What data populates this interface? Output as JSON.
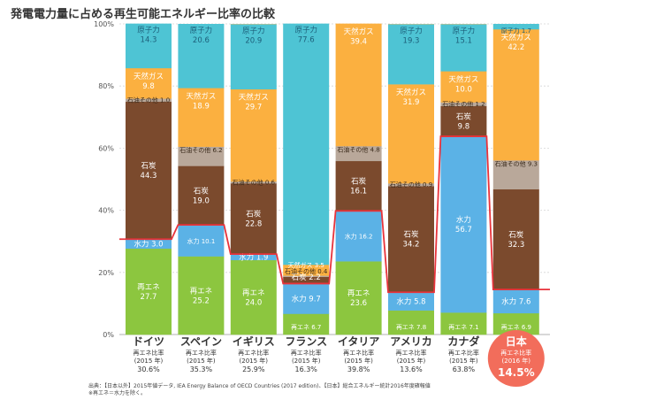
{
  "title": "発電電力量に占める再生可能エネルギー比率の比較",
  "source_lines": [
    "出典：【日本以外】2015年値データ, IEA Energy Balance of OECD Countries (2017 edition)、【日本】総合エネルギー統計2016年度確報値",
    "※再エネ＝水力を除く。"
  ],
  "colors": {
    "renew": "#8cc63f",
    "hydro": "#5bb2e6",
    "coal": "#7b4a2d",
    "oil": "#b9a89a",
    "gas": "#fbb040",
    "nuclear": "#4ec4d4",
    "japan_circle": "#f26d5b",
    "red_line": "#e8333b"
  },
  "chart_data": {
    "type": "bar",
    "stacked": true,
    "normalized": true,
    "ylim": [
      0,
      100
    ],
    "yticks": [
      "0%",
      "20%",
      "40%",
      "60%",
      "80%",
      "100%"
    ],
    "grid": true,
    "categories": [
      "ドイツ",
      "スペイン",
      "イギリス",
      "フランス",
      "イタリア",
      "アメリカ",
      "カナダ",
      "日本"
    ],
    "renewable_ratio_label": "再エネ比率",
    "years": [
      "(2015 年)",
      "(2015 年)",
      "(2015 年)",
      "(2015 年)",
      "(2015 年)",
      "(2015 年)",
      "(2015 年)",
      "(2016 年)"
    ],
    "renewable_ratio": [
      "30.6%",
      "35.3%",
      "25.9%",
      "16.3%",
      "39.8%",
      "13.6%",
      "63.8%",
      "14.5%"
    ],
    "highlight_category": "日本",
    "series": [
      {
        "key": "renew",
        "name": "再エネ",
        "values": [
          27.7,
          25.2,
          24.0,
          6.7,
          23.6,
          7.8,
          7.1,
          6.9
        ]
      },
      {
        "key": "hydro",
        "name": "水力",
        "values": [
          3.0,
          10.1,
          1.9,
          9.7,
          16.2,
          5.8,
          56.7,
          7.6
        ]
      },
      {
        "key": "coal",
        "name": "石炭",
        "values": [
          44.3,
          19.0,
          22.8,
          2.2,
          16.1,
          34.2,
          9.8,
          32.3
        ]
      },
      {
        "key": "oil",
        "name": "石油その他",
        "values": [
          1.0,
          6.2,
          0.6,
          0.4,
          4.8,
          0.9,
          1.2,
          9.3
        ]
      },
      {
        "key": "gas",
        "name": "天然ガス",
        "values": [
          9.8,
          18.9,
          29.7,
          3.5,
          39.4,
          31.9,
          10.0,
          42.2
        ]
      },
      {
        "key": "nuclear",
        "name": "原子力",
        "values": [
          14.3,
          20.6,
          20.9,
          77.6,
          0,
          19.3,
          15.1,
          1.7
        ]
      }
    ],
    "segment_labels": [
      {
        "category": 0,
        "series": "renew",
        "text": [
          "再エネ",
          "27.7"
        ]
      },
      {
        "category": 0,
        "series": "hydro",
        "text": [
          "水力 3.0"
        ]
      },
      {
        "category": 0,
        "series": "coal",
        "text": [
          "石炭",
          "44.3"
        ]
      },
      {
        "category": 0,
        "series": "oil",
        "text": [
          "石油その他 1.0"
        ]
      },
      {
        "category": 0,
        "series": "gas",
        "text": [
          "天然ガス",
          "9.8"
        ]
      },
      {
        "category": 0,
        "series": "nuclear",
        "text": [
          "原子力",
          "14.3"
        ]
      },
      {
        "category": 1,
        "series": "renew",
        "text": [
          "再エネ",
          "25.2"
        ]
      },
      {
        "category": 1,
        "series": "hydro",
        "text": [
          "水力 10.1"
        ]
      },
      {
        "category": 1,
        "series": "coal",
        "text": [
          "石炭",
          "19.0"
        ]
      },
      {
        "category": 1,
        "series": "oil",
        "text": [
          "石油その他 6.2"
        ]
      },
      {
        "category": 1,
        "series": "gas",
        "text": [
          "天然ガス",
          "18.9"
        ]
      },
      {
        "category": 1,
        "series": "nuclear",
        "text": [
          "原子力",
          "20.6"
        ]
      },
      {
        "category": 2,
        "series": "renew",
        "text": [
          "再エネ",
          "24.0"
        ]
      },
      {
        "category": 2,
        "series": "hydro",
        "text": [
          "水力 1.9"
        ]
      },
      {
        "category": 2,
        "series": "coal",
        "text": [
          "石炭",
          "22.8"
        ]
      },
      {
        "category": 2,
        "series": "oil",
        "text": [
          "石油その他 0.6"
        ]
      },
      {
        "category": 2,
        "series": "gas",
        "text": [
          "天然ガス",
          "29.7"
        ]
      },
      {
        "category": 2,
        "series": "nuclear",
        "text": [
          "原子力",
          "20.9"
        ]
      },
      {
        "category": 3,
        "series": "renew",
        "text": [
          "再エネ 6.7"
        ]
      },
      {
        "category": 3,
        "series": "hydro",
        "text": [
          "水力 9.7"
        ]
      },
      {
        "category": 3,
        "series": "coal",
        "text": [
          "石炭 2.2"
        ]
      },
      {
        "category": 3,
        "series": "oil",
        "text": [
          "石油その他 0.4"
        ]
      },
      {
        "category": 3,
        "series": "gas",
        "text": [
          "天然ガス 3.5"
        ]
      },
      {
        "category": 3,
        "series": "nuclear",
        "text": [
          "原子力",
          "77.6"
        ]
      },
      {
        "category": 4,
        "series": "renew",
        "text": [
          "再エネ",
          "23.6"
        ]
      },
      {
        "category": 4,
        "series": "hydro",
        "text": [
          "水力 16.2"
        ]
      },
      {
        "category": 4,
        "series": "coal",
        "text": [
          "石炭",
          "16.1"
        ]
      },
      {
        "category": 4,
        "series": "oil",
        "text": [
          "石油その他 4.8"
        ]
      },
      {
        "category": 4,
        "series": "gas",
        "text": [
          "天然ガス",
          "39.4"
        ]
      },
      {
        "category": 5,
        "series": "renew",
        "text": [
          "再エネ 7.8"
        ]
      },
      {
        "category": 5,
        "series": "hydro",
        "text": [
          "水力 5.8"
        ]
      },
      {
        "category": 5,
        "series": "coal",
        "text": [
          "石炭",
          "34.2"
        ]
      },
      {
        "category": 5,
        "series": "oil",
        "text": [
          "石油その他 0.9"
        ]
      },
      {
        "category": 5,
        "series": "gas",
        "text": [
          "天然ガス",
          "31.9"
        ]
      },
      {
        "category": 5,
        "series": "nuclear",
        "text": [
          "原子力",
          "19.3"
        ]
      },
      {
        "category": 6,
        "series": "renew",
        "text": [
          "再エネ 7.1"
        ]
      },
      {
        "category": 6,
        "series": "hydro",
        "text": [
          "水力",
          "56.7"
        ]
      },
      {
        "category": 6,
        "series": "coal",
        "text": [
          "石炭",
          "9.8"
        ]
      },
      {
        "category": 6,
        "series": "oil",
        "text": [
          "石油その他 1.2"
        ]
      },
      {
        "category": 6,
        "series": "gas",
        "text": [
          "天然ガス",
          "10.0"
        ]
      },
      {
        "category": 6,
        "series": "nuclear",
        "text": [
          "原子力",
          "15.1"
        ]
      },
      {
        "category": 7,
        "series": "renew",
        "text": [
          "再エネ 6.9"
        ]
      },
      {
        "category": 7,
        "series": "hydro",
        "text": [
          "水力 7.6"
        ]
      },
      {
        "category": 7,
        "series": "coal",
        "text": [
          "石炭",
          "32.3"
        ]
      },
      {
        "category": 7,
        "series": "oil",
        "text": [
          "石油その他 9.3"
        ]
      },
      {
        "category": 7,
        "series": "gas",
        "text": [
          "天然ガス",
          "42.2"
        ]
      },
      {
        "category": 7,
        "series": "nuclear",
        "text": [
          "原子力 1.7"
        ]
      }
    ]
  }
}
